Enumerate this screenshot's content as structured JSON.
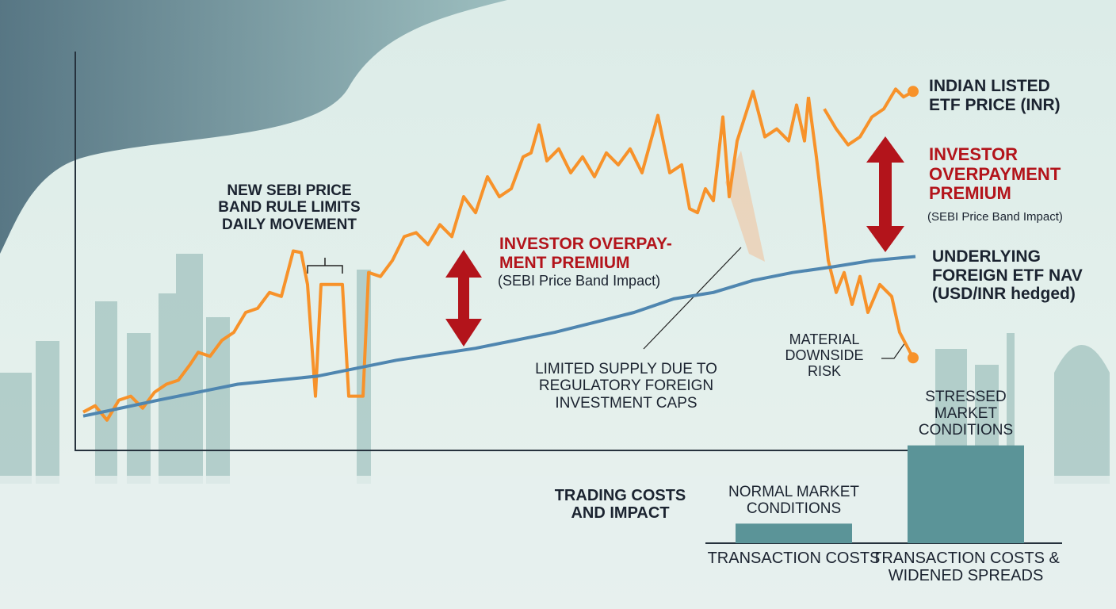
{
  "chart_data": [
    {
      "type": "line",
      "xlim": [
        0,
        106
      ],
      "ylim": [
        0,
        100
      ],
      "annotations": {
        "band_rule": "NEW SEBI PRICE BAND RULE LIMITS DAILY MOVEMENT",
        "premium_mid": "INVESTOR OVERPAY- MENT PREMIUM",
        "premium_mid_sub": "(SEBI Price Band Impact)",
        "premium_right": "INVESTOR OVERPAYMENT PREMIUM",
        "premium_right_sub": "(SEBI Price Band Impact)",
        "supply": "LIMITED SUPPLY DUE TO REGULATORY FOREIGN INVESTMENT CAPS"
      },
      "series": [
        {
          "name": "INDIAN LISTED ETF PRICE (INR)",
          "color": "#f7922a",
          "x": [
            1,
            2.5,
            4,
            5.5,
            7,
            8.5,
            10,
            11.5,
            13,
            14.5,
            15.5,
            17,
            18.5,
            20,
            21.5,
            23,
            24.5,
            26,
            27.5,
            28.5,
            29.3,
            30.3,
            31,
            33.7,
            34.5,
            36.3,
            37,
            38.5,
            40,
            41.5,
            43,
            44.5,
            46,
            47.5,
            49,
            50.5,
            52,
            53.5,
            55,
            56.5,
            57.5,
            58.5,
            59.5,
            61,
            62.5,
            64,
            65.5,
            67,
            68.5,
            70,
            71.5,
            73.5,
            75,
            76.5,
            77.5,
            78.5,
            79.5,
            80.5,
            81.7,
            82.5,
            83.5,
            85.5,
            87,
            88.5,
            90,
            91,
            92,
            92.5,
            93.5,
            94.5,
            96,
            97.5,
            99,
            100.5,
            102,
            103.5,
            104.5,
            105.7
          ],
          "values": [
            9.6,
            11.2,
            7.6,
            12.6,
            13.6,
            10.6,
            14.6,
            16.6,
            17.6,
            21.6,
            24.6,
            23.6,
            27.6,
            29.6,
            34.6,
            35.6,
            39.6,
            38.6,
            50,
            49.6,
            41.6,
            13.6,
            41.6,
            41.6,
            13.6,
            13.6,
            44.6,
            43.6,
            47.6,
            53.6,
            54.6,
            51.6,
            56.6,
            53.6,
            63.6,
            59.6,
            68.6,
            63.6,
            65.6,
            73.6,
            74.6,
            81.6,
            72.6,
            75.6,
            69.6,
            73.6,
            68.6,
            74.6,
            71.6,
            75.6,
            69.6,
            84,
            69.6,
            71.6,
            60.6,
            59.6,
            65.6,
            62.6,
            83.6,
            63.6,
            77.6,
            90,
            78.6,
            80.6,
            77.6,
            86.6,
            77.6,
            88.6,
            null,
            85.6,
            80.6,
            76.6,
            78.6,
            83.6,
            85.6,
            90.6,
            88.6,
            90
          ]
        },
        {
          "name": "MATERIAL DOWNSIDE RISK",
          "color": "#f7922a",
          "x": [
            92.5,
            93.5,
            95,
            96,
            97,
            98,
            99,
            100,
            101.5,
            103,
            104,
            105.7
          ],
          "values": [
            88.6,
            73.6,
            47.6,
            39.6,
            44.6,
            36.6,
            43.6,
            34.6,
            41.6,
            38.6,
            29.6,
            23.2
          ]
        },
        {
          "name": "UNDERLYING FOREIGN ETF NAV (USD/INR hedged)",
          "color": "#4f86b0",
          "x": [
            1,
            10.5,
            20.5,
            30.5,
            40.5,
            50.5,
            60.5,
            70.5,
            75.5,
            80.5,
            85.5,
            90.5,
            95.5,
            100.5,
            106
          ],
          "values": [
            8.6,
            12.6,
            16.6,
            18.6,
            22.6,
            25.6,
            29.6,
            34.6,
            38,
            39.6,
            42.6,
            44.6,
            46,
            47.6,
            48.6
          ]
        }
      ]
    },
    {
      "type": "bar",
      "title": "TRADING COSTS AND IMPACT",
      "categories": [
        "TRANSACTION COSTS",
        "TRANSACTION COSTS & WIDENED SPREADS"
      ],
      "labels": [
        "NORMAL MARKET CONDITIONS",
        "STRESSED MARKET CONDITIONS"
      ],
      "values": [
        1,
        5
      ],
      "color": "#5b9498",
      "ylim": [
        0,
        6
      ]
    }
  ]
}
